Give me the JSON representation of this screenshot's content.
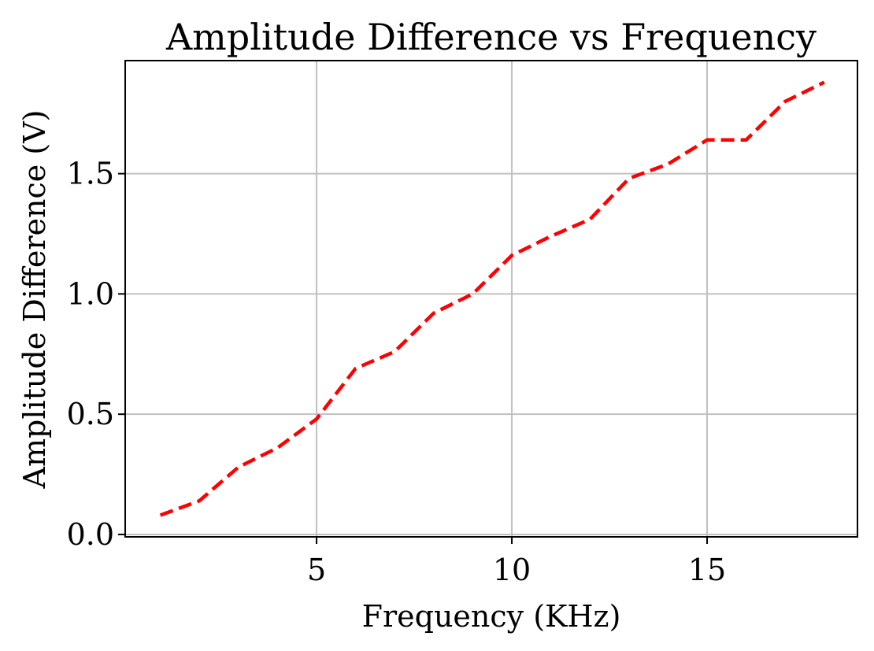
{
  "chart_data": {
    "type": "line",
    "title": "Amplitude Difference vs Frequency",
    "xlabel": "Frequency (KHz)",
    "ylabel": "Amplitude Difference (V)",
    "xlim": [
      0.1,
      18.85
    ],
    "ylim": [
      -0.01,
      1.97
    ],
    "xticks": [
      5,
      10,
      15
    ],
    "xtick_labels": [
      "5",
      "10",
      "15"
    ],
    "yticks": [
      0.0,
      0.5,
      1.0,
      1.5
    ],
    "ytick_labels": [
      "0.0",
      "0.5",
      "1.0",
      "1.5"
    ],
    "grid": true,
    "series": [
      {
        "name": "Amplitude Difference",
        "color": "#ff0000",
        "line_style": "dashed",
        "x": [
          1,
          2,
          3,
          4,
          5,
          6,
          7,
          8,
          9,
          10,
          11,
          12,
          13,
          14,
          15,
          16,
          17,
          18
        ],
        "y": [
          0.08,
          0.14,
          0.28,
          0.36,
          0.48,
          0.69,
          0.76,
          0.92,
          1.0,
          1.16,
          1.24,
          1.31,
          1.48,
          1.54,
          1.64,
          1.64,
          1.8,
          1.88
        ]
      }
    ]
  }
}
